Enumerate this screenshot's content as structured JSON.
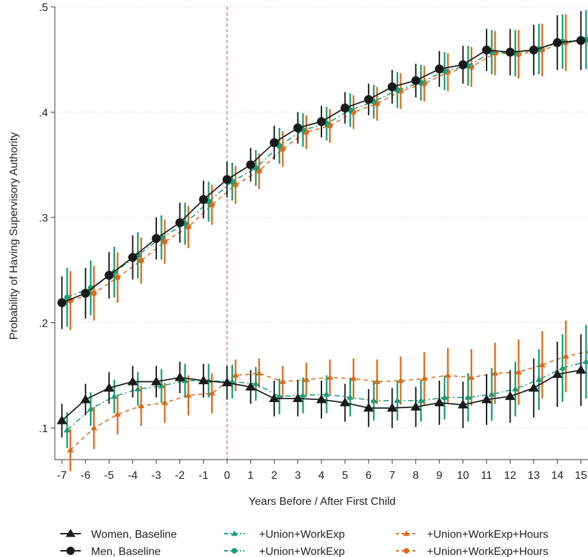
{
  "chart_data": {
    "type": "line",
    "title": "",
    "xlabel": "Years Before / After First Child",
    "ylabel": "Probability of Having Supervisory Authority",
    "xlim": [
      -7.3,
      15.3
    ],
    "ylim": [
      0.07,
      0.5
    ],
    "xticks": [
      -7,
      -6,
      -5,
      -4,
      -3,
      -2,
      -1,
      0,
      1,
      2,
      3,
      4,
      5,
      6,
      7,
      8,
      9,
      10,
      11,
      12,
      13,
      14,
      15
    ],
    "xtick_labels": [
      "-7",
      "-6",
      "-5",
      "-4",
      "-3",
      "-2",
      "-1",
      "0",
      "1",
      "2",
      "3",
      "4",
      "5",
      "6",
      "7",
      "8",
      "9",
      "10",
      "11",
      "12",
      "13",
      "14",
      "15"
    ],
    "yticks": [
      0.1,
      0.2,
      0.3,
      0.4,
      0.5
    ],
    "ytick_labels": [
      ".1",
      ".2",
      ".3",
      ".4",
      ".5"
    ],
    "grid": "horizontal dotted",
    "event_line_x": 0,
    "legend_position": "bottom",
    "series": [
      {
        "name": "Women, Baseline",
        "color": "#1a1a1a",
        "marker": "triangle",
        "dash": "solid",
        "offset": 0,
        "x": [
          -7,
          -6,
          -5,
          -4,
          -3,
          -2,
          -1,
          0,
          1,
          2,
          3,
          4,
          5,
          6,
          7,
          8,
          9,
          10,
          11,
          12,
          13,
          14,
          15
        ],
        "y": [
          0.107,
          0.127,
          0.138,
          0.144,
          0.144,
          0.148,
          0.145,
          0.143,
          0.139,
          0.128,
          0.128,
          0.127,
          0.124,
          0.119,
          0.119,
          0.12,
          0.124,
          0.122,
          0.127,
          0.13,
          0.138,
          0.151,
          0.155
        ],
        "ci": [
          0.016,
          0.015,
          0.015,
          0.015,
          0.015,
          0.015,
          0.016,
          0.016,
          0.016,
          0.017,
          0.017,
          0.018,
          0.018,
          0.018,
          0.019,
          0.019,
          0.021,
          0.022,
          0.024,
          0.025,
          0.028,
          0.031,
          0.034
        ]
      },
      {
        "name": "Men, Baseline",
        "color": "#1a1a1a",
        "marker": "circle",
        "dash": "solid",
        "offset": 0,
        "x": [
          -7,
          -6,
          -5,
          -4,
          -3,
          -2,
          -1,
          0,
          1,
          2,
          3,
          4,
          5,
          6,
          7,
          8,
          9,
          10,
          11,
          12,
          13,
          14,
          15
        ],
        "y": [
          0.219,
          0.228,
          0.245,
          0.262,
          0.28,
          0.295,
          0.317,
          0.336,
          0.35,
          0.371,
          0.385,
          0.391,
          0.404,
          0.412,
          0.424,
          0.43,
          0.441,
          0.445,
          0.459,
          0.457,
          0.459,
          0.466,
          0.468
        ],
        "ci": [
          0.025,
          0.024,
          0.022,
          0.021,
          0.02,
          0.019,
          0.018,
          0.017,
          0.016,
          0.016,
          0.015,
          0.015,
          0.015,
          0.015,
          0.016,
          0.016,
          0.017,
          0.018,
          0.02,
          0.022,
          0.024,
          0.026,
          0.028
        ]
      },
      {
        "name": "+Union+WorkExp",
        "color": "#1a9e77",
        "marker": "triangle",
        "dash": "dashdot",
        "offset": 0.22,
        "x": [
          -7,
          -6,
          -5,
          -4,
          -3,
          -2,
          -1,
          0,
          1,
          2,
          3,
          4,
          5,
          6,
          7,
          8,
          9,
          10,
          11,
          12,
          13,
          14,
          15
        ],
        "y": [
          0.098,
          0.118,
          0.13,
          0.137,
          0.14,
          0.145,
          0.145,
          0.144,
          0.142,
          0.13,
          0.131,
          0.132,
          0.129,
          0.126,
          0.126,
          0.126,
          0.129,
          0.129,
          0.132,
          0.137,
          0.146,
          0.157,
          0.163
        ],
        "ci": [
          0.017,
          0.016,
          0.016,
          0.016,
          0.016,
          0.016,
          0.016,
          0.016,
          0.016,
          0.017,
          0.017,
          0.018,
          0.018,
          0.019,
          0.019,
          0.02,
          0.021,
          0.023,
          0.025,
          0.026,
          0.029,
          0.032,
          0.035
        ]
      },
      {
        "name": "+Union+WorkExp",
        "color": "#1a9e77",
        "marker": "circle",
        "dash": "dashdot",
        "offset": 0.22,
        "x": [
          -7,
          -6,
          -5,
          -4,
          -3,
          -2,
          -1,
          0,
          1,
          2,
          3,
          4,
          5,
          6,
          7,
          8,
          9,
          10,
          11,
          12,
          13,
          14,
          15
        ],
        "y": [
          0.224,
          0.233,
          0.248,
          0.264,
          0.281,
          0.294,
          0.315,
          0.334,
          0.347,
          0.368,
          0.383,
          0.389,
          0.402,
          0.41,
          0.421,
          0.428,
          0.439,
          0.444,
          0.457,
          0.456,
          0.46,
          0.467,
          0.469
        ],
        "ci": [
          0.028,
          0.026,
          0.024,
          0.022,
          0.021,
          0.02,
          0.019,
          0.018,
          0.017,
          0.017,
          0.016,
          0.016,
          0.016,
          0.016,
          0.017,
          0.017,
          0.018,
          0.019,
          0.021,
          0.022,
          0.024,
          0.026,
          0.028
        ]
      },
      {
        "name": "+Union+WorkExp+Hours",
        "color": "#e06a1b",
        "marker": "triangle",
        "dash": "dashed",
        "offset": 0.36,
        "x": [
          -7,
          -6,
          -5,
          -4,
          -3,
          -2,
          -1,
          0,
          1,
          2,
          3,
          4,
          5,
          6,
          7,
          8,
          9,
          10,
          11,
          12,
          13,
          14,
          15
        ],
        "y": [
          0.079,
          0.1,
          0.113,
          0.121,
          0.124,
          0.131,
          0.133,
          0.15,
          0.152,
          0.144,
          0.146,
          0.148,
          0.147,
          0.144,
          0.145,
          0.147,
          0.15,
          0.148,
          0.152,
          0.153,
          0.16,
          0.168,
          0.173
        ],
        "ci": [
          0.02,
          0.02,
          0.019,
          0.019,
          0.019,
          0.019,
          0.019,
          0.015,
          0.014,
          0.015,
          0.016,
          0.017,
          0.019,
          0.021,
          0.023,
          0.025,
          0.026,
          0.027,
          0.029,
          0.031,
          0.032,
          0.034,
          0.036
        ]
      },
      {
        "name": "+Union+WorkExp+Hours",
        "color": "#e06a1b",
        "marker": "circle",
        "dash": "dashed",
        "offset": 0.36,
        "x": [
          -7,
          -6,
          -5,
          -4,
          -3,
          -2,
          -1,
          0,
          1,
          2,
          3,
          4,
          5,
          6,
          7,
          8,
          9,
          10,
          11,
          12,
          13,
          14,
          15
        ],
        "y": [
          0.221,
          0.228,
          0.243,
          0.259,
          0.277,
          0.291,
          0.312,
          0.331,
          0.344,
          0.365,
          0.381,
          0.387,
          0.4,
          0.408,
          0.42,
          0.427,
          0.438,
          0.443,
          0.456,
          0.455,
          0.459,
          0.466,
          0.468
        ],
        "ci": [
          0.028,
          0.026,
          0.024,
          0.022,
          0.021,
          0.02,
          0.019,
          0.018,
          0.017,
          0.017,
          0.016,
          0.016,
          0.016,
          0.016,
          0.017,
          0.017,
          0.018,
          0.019,
          0.021,
          0.023,
          0.025,
          0.027,
          0.03
        ]
      }
    ]
  }
}
